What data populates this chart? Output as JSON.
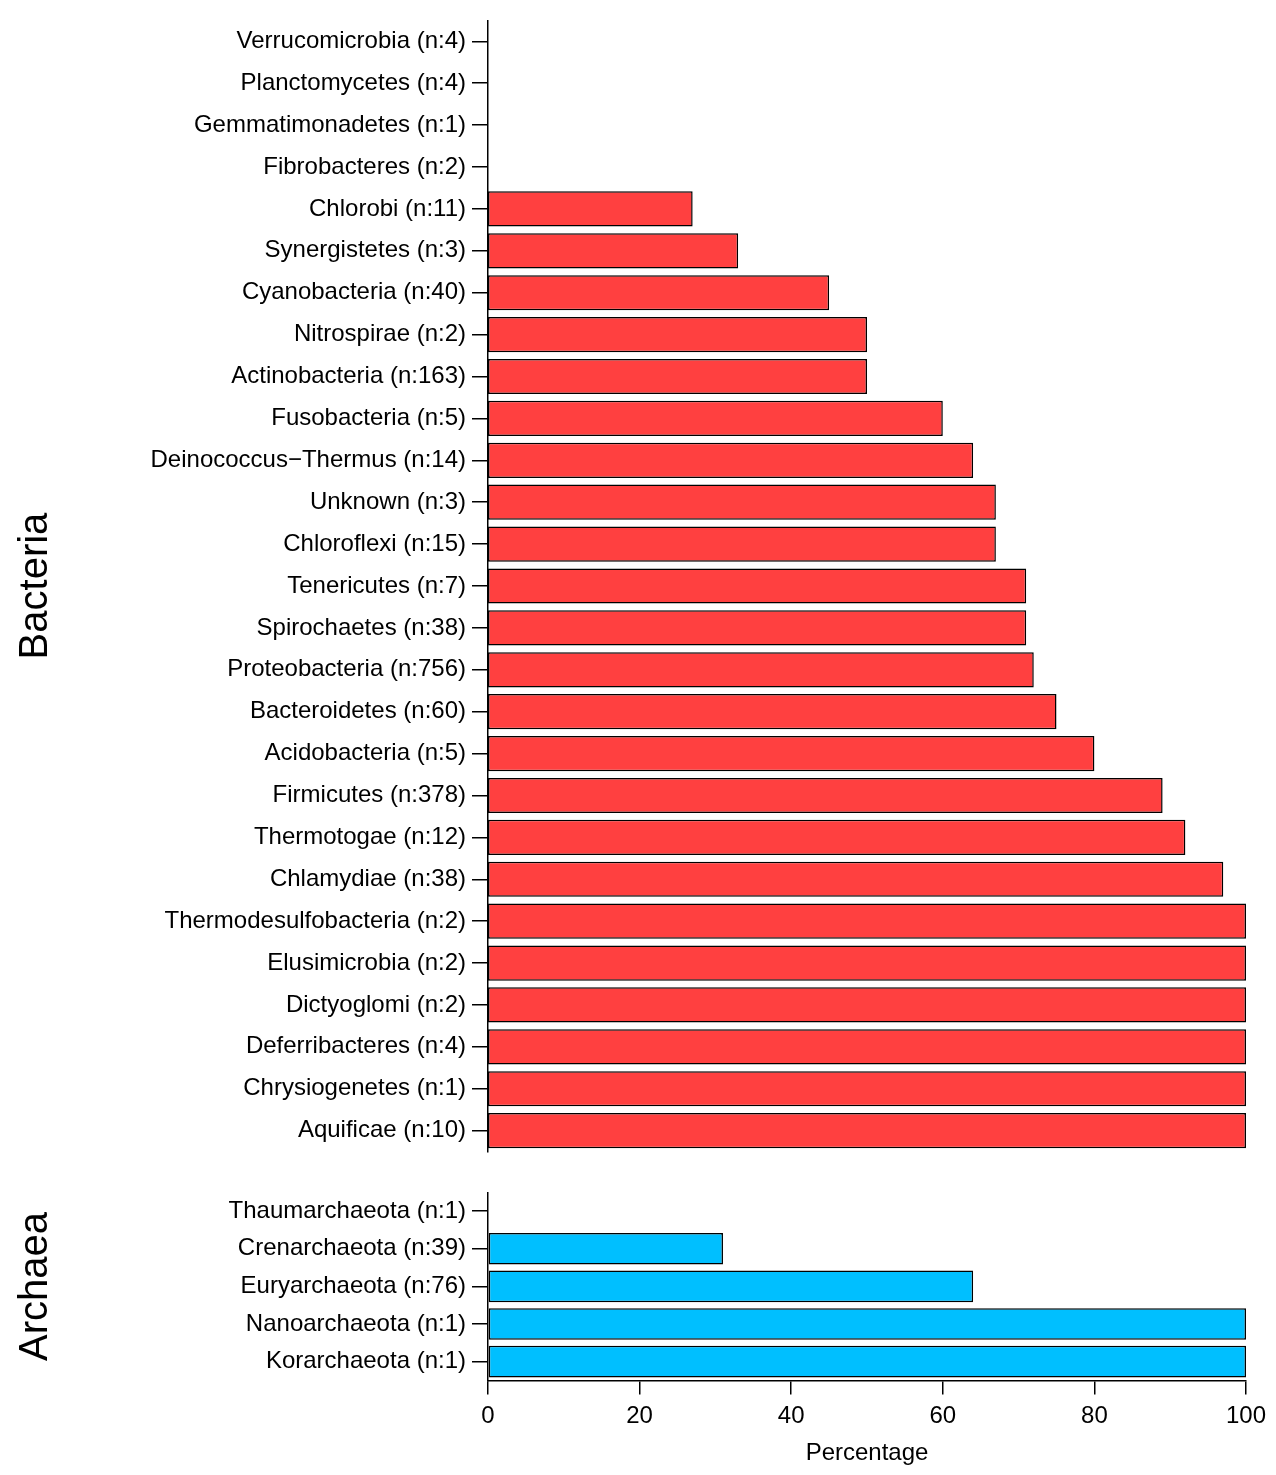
{
  "chart_data": [
    {
      "type": "bar",
      "orientation": "horizontal",
      "ylabel": "Bacteria",
      "tick_labels": "y",
      "xlim": [
        0,
        100
      ],
      "xticks": [
        0,
        20,
        40,
        60,
        80,
        100
      ],
      "color": "#ff4040",
      "categories": [
        "Verrucomicrobia (n:4)",
        "Planctomycetes (n:4)",
        "Gemmatimonadetes (n:1)",
        "Fibrobacteres (n:2)",
        "Chlorobi (n:11)",
        "Synergistetes (n:3)",
        "Cyanobacteria (n:40)",
        "Nitrospirae (n:2)",
        "Actinobacteria (n:163)",
        "Fusobacteria (n:5)",
        "Deinococcus−Thermus (n:14)",
        "Unknown (n:3)",
        "Chloroflexi (n:15)",
        "Tenericutes (n:7)",
        "Spirochaetes (n:38)",
        "Proteobacteria (n:756)",
        "Bacteroidetes (n:60)",
        "Acidobacteria (n:5)",
        "Firmicutes (n:378)",
        "Thermotogae (n:12)",
        "Chlamydiae (n:38)",
        "Thermodesulfobacteria (n:2)",
        "Elusimicrobia (n:2)",
        "Dictyoglomi (n:2)",
        "Deferribacteres (n:4)",
        "Chrysiogenetes (n:1)",
        "Aquificae (n:10)"
      ],
      "values": [
        0,
        0,
        0,
        0,
        27,
        33,
        45,
        50,
        50,
        60,
        64,
        67,
        67,
        71,
        71,
        72,
        75,
        80,
        89,
        92,
        97,
        100,
        100,
        100,
        100,
        100,
        100
      ]
    },
    {
      "type": "bar",
      "orientation": "horizontal",
      "ylabel": "Archaea",
      "xlabel": "Percentage",
      "xlim": [
        0,
        100
      ],
      "xticks": [
        0,
        20,
        40,
        60,
        80,
        100
      ],
      "color": "#00bfff",
      "categories": [
        "Thaumarchaeota (n:1)",
        "Crenarchaeota (n:39)",
        "Euryarchaeota (n:76)",
        "Nanoarchaeota (n:1)",
        "Korarchaeota (n:1)"
      ],
      "values": [
        0,
        31,
        64,
        100,
        100
      ]
    }
  ]
}
